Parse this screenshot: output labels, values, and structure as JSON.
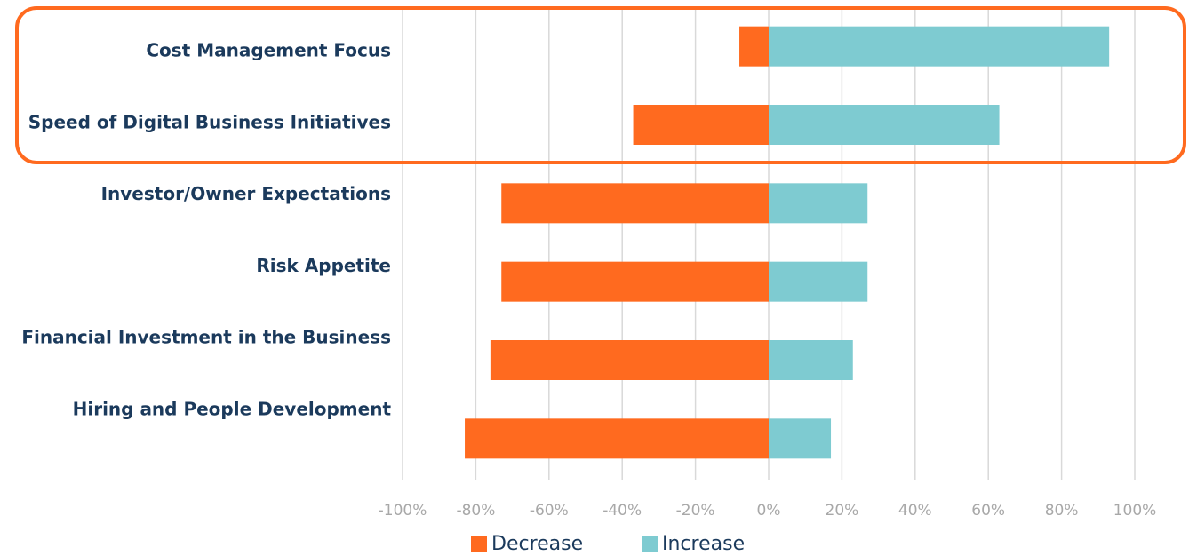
{
  "chart_data": {
    "type": "bar",
    "orientation": "horizontal",
    "stacked": true,
    "categories": [
      "Cost Management Focus",
      "Speed of Digital Business Initiatives",
      "Investor/Owner Expectations",
      "Risk Appetite",
      "Financial Investment in the Business",
      "Hiring and People Development"
    ],
    "series": [
      {
        "name": "Decrease",
        "color": "#ff6a1f",
        "values": [
          -8,
          -37,
          -73,
          -73,
          -76,
          -83
        ]
      },
      {
        "name": "Increase",
        "color": "#7ecbd1",
        "values": [
          93,
          63,
          27,
          27,
          23,
          17
        ]
      }
    ],
    "xlim": [
      -100,
      100
    ],
    "xticks": [
      {
        "value": -100,
        "label": "-100%"
      },
      {
        "value": -80,
        "label": "-80%"
      },
      {
        "value": -60,
        "label": "-60%"
      },
      {
        "value": -40,
        "label": "-40%"
      },
      {
        "value": -20,
        "label": "-20%"
      },
      {
        "value": 0,
        "label": "0%"
      },
      {
        "value": 20,
        "label": "20%"
      },
      {
        "value": 40,
        "label": "40%"
      },
      {
        "value": 60,
        "label": "60%"
      },
      {
        "value": 80,
        "label": "80%"
      },
      {
        "value": 100,
        "label": "100%"
      }
    ],
    "grid": true,
    "legend": "bottom"
  }
}
